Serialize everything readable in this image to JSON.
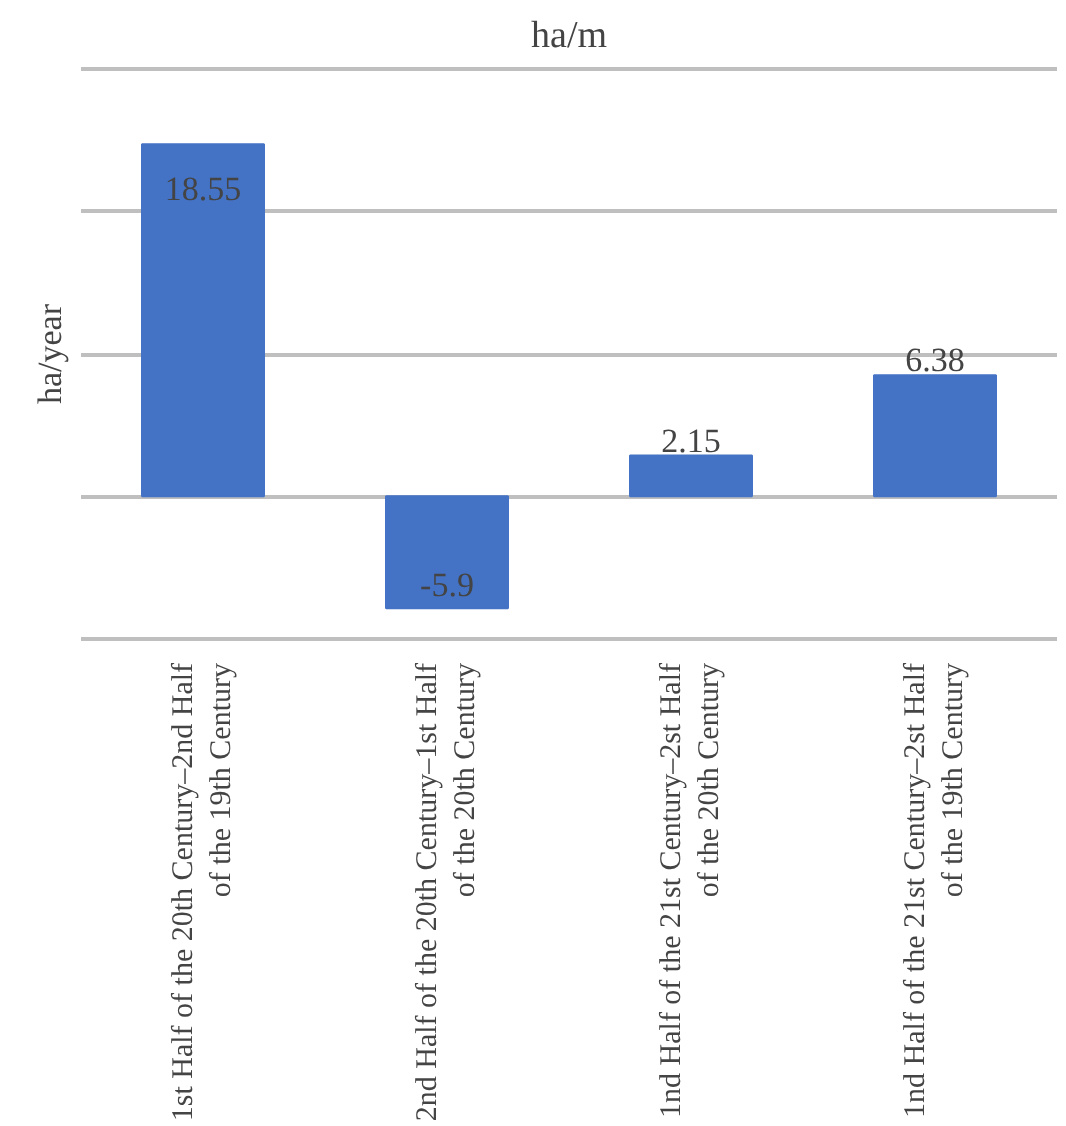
{
  "chart_data": {
    "type": "bar",
    "title": "ha/m",
    "ylabel": "ha/year",
    "categories": [
      "1st Half of the 20th Century–2nd Half of the 19th Century",
      "2nd Half of the 20th Century–1st Half of the 20th Century",
      "1nd Half of the 21st Century–2st Half of the 20th Century",
      "1nd Half of the 21st Century–2st Half of the 19th Century"
    ],
    "values": [
      18.55,
      -5.9,
      2.15,
      6.38
    ],
    "color": "#4472c4",
    "data_labels": true,
    "yticks": [
      {
        "value": -7.5,
        "label": null
      },
      {
        "value": 0,
        "label": null
      },
      {
        "value": 7.5,
        "label": null
      },
      {
        "value": 15,
        "label": null
      },
      {
        "value": 22.5,
        "label": null
      }
    ],
    "grid": "y",
    "tick_labels": "x"
  }
}
